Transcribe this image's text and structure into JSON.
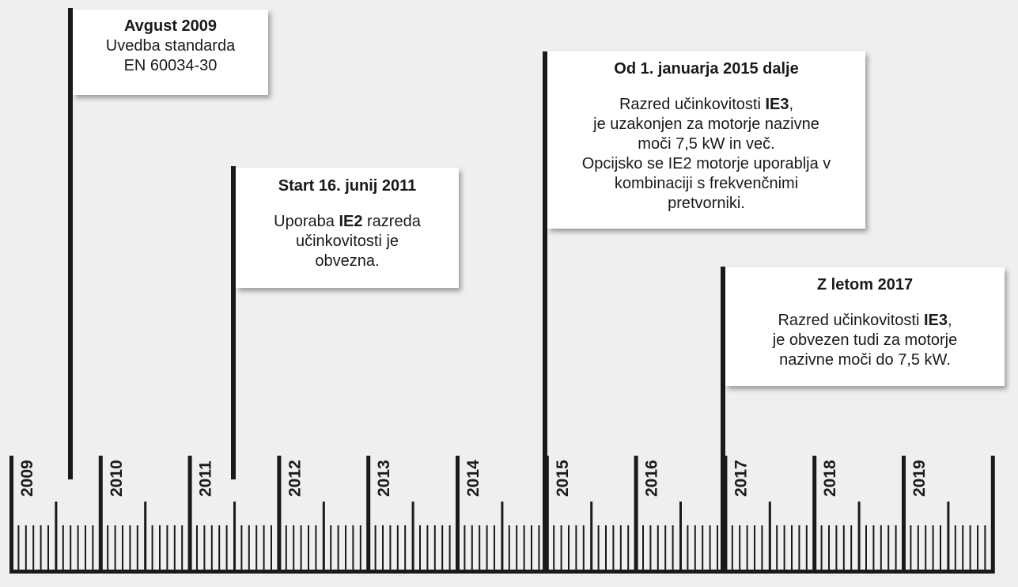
{
  "timeline": {
    "years": [
      "2009",
      "2010",
      "2011",
      "2012",
      "2013",
      "2014",
      "2015",
      "2016",
      "2017",
      "2018",
      "2019"
    ]
  },
  "events": [
    {
      "title": "Avgust 2009",
      "lines": [
        "Uvedba standarda",
        "EN 60034-30"
      ]
    },
    {
      "title": "Start 16. junij 2011",
      "line1_pre": "Uporaba ",
      "line1_bold": "IE2",
      "line1_post": " razreda",
      "line2": "učinkovitosti je",
      "line3": "obvezna."
    },
    {
      "title": "Od 1. januarja 2015 dalje",
      "line1_pre": "Razred učinkovitosti ",
      "line1_bold": "IE3",
      "line1_post": ",",
      "line2": "je uzakonjen za motorje nazivne",
      "line3": "moči 7,5 kW in več.",
      "line4": "Opcijsko se IE2 motorje uporablja v",
      "line5": "kombinaciji s frekvenčnimi",
      "line6": "pretvorniki."
    },
    {
      "title": "Z letom 2017",
      "line1_pre": "Razred učinkovitosti ",
      "line1_bold": "IE3",
      "line1_post": ",",
      "line2": "je obvezen tudi za motorje",
      "line3": "nazivne moči do 7,5 kW."
    }
  ],
  "colors": {
    "ink": "#1a1a1a",
    "background": "#efefef",
    "card": "#ffffff"
  }
}
